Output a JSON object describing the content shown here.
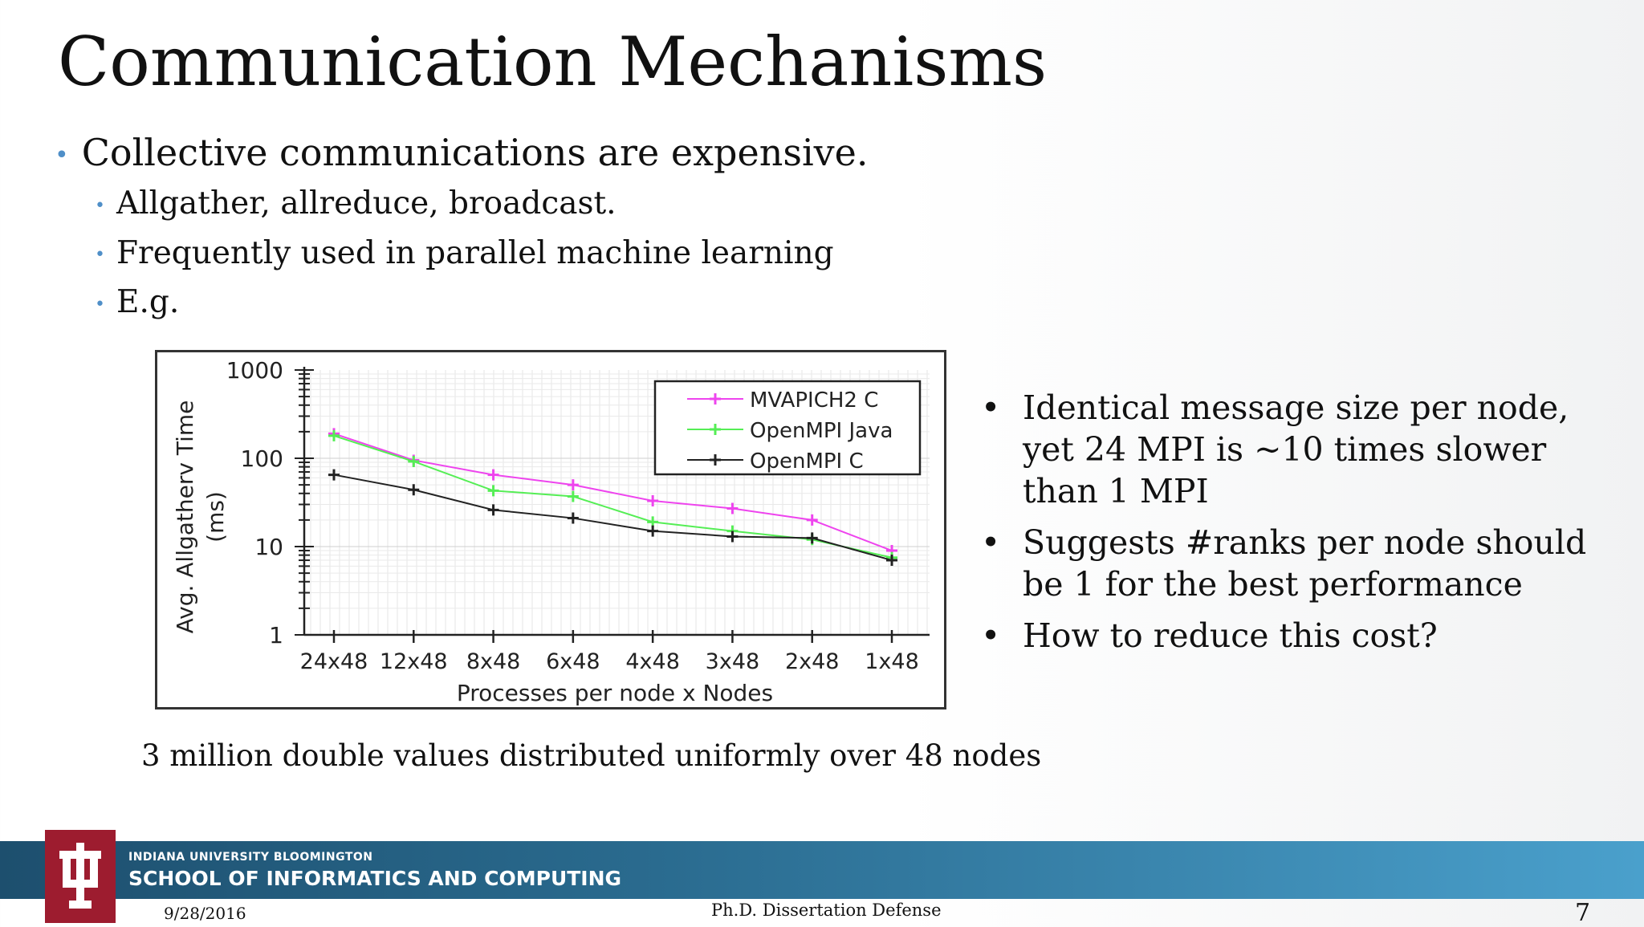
{
  "slide": {
    "title": "Communication Mechanisms",
    "bullets": {
      "main": "Collective communications are expensive.",
      "subs": [
        "Allgather, allreduce, broadcast.",
        "Frequently used in parallel machine learning",
        "E.g."
      ]
    },
    "caption": "3 million double values distributed uniformly over 48 nodes",
    "right_bullets": [
      "Identical message size per node, yet 24 MPI is ~10 times slower than 1 MPI",
      "Suggests #ranks per node should be 1 for the best performance",
      "How to reduce this cost?"
    ],
    "bullet_char": "•"
  },
  "footer": {
    "org_small": "INDIANA UNIVERSITY BLOOMINGTON",
    "org_big": "SCHOOL OF INFORMATICS AND COMPUTING",
    "date": "9/28/2016",
    "center": "Ph.D. Dissertation Defense",
    "page": "7",
    "band_color": "#2a6b8f",
    "logo_color": "#9d1c2f"
  },
  "chart_data": {
    "type": "line",
    "ylog": true,
    "ylim": [
      1,
      1000
    ],
    "yticks": [
      "1",
      "10",
      "100",
      "1000"
    ],
    "ylabel": "Avg. Allgatherv Time (ms)",
    "xlabel": "Processes per node x Nodes",
    "categories": [
      "24x48",
      "12x48",
      "8x48",
      "6x48",
      "4x48",
      "3x48",
      "2x48",
      "1x48"
    ],
    "series": [
      {
        "name": "MVAPICH2 C",
        "color": "#ee44ee",
        "values": [
          190,
          95,
          65,
          50,
          33,
          27,
          20,
          9
        ]
      },
      {
        "name": "OpenMPI Java",
        "color": "#55ee55",
        "values": [
          180,
          92,
          43,
          37,
          19,
          15,
          12,
          7.5
        ]
      },
      {
        "name": "OpenMPI C",
        "color": "#222222",
        "values": [
          65,
          44,
          26,
          21,
          15,
          13,
          12.5,
          7
        ]
      }
    ],
    "legend": "top-right",
    "grid": true
  }
}
